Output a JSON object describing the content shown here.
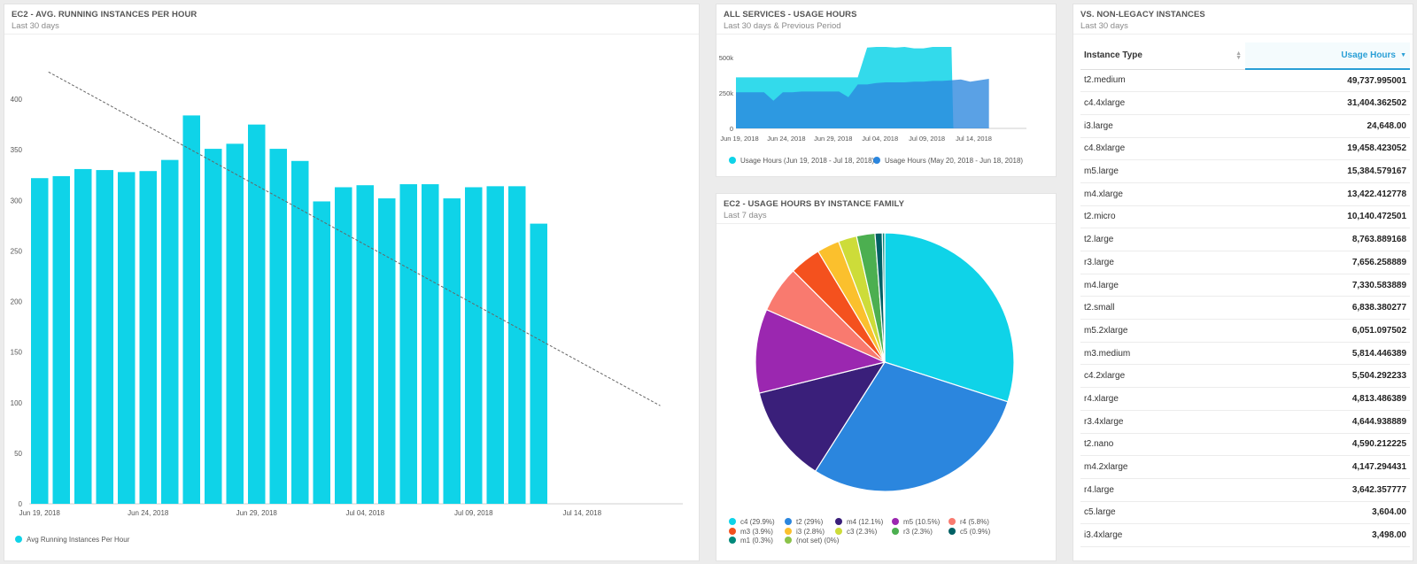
{
  "panels": {
    "ec2_avg": {
      "title": "EC2 - AVG. RUNNING INSTANCES PER HOUR",
      "subtitle": "Last 30 days"
    },
    "all_services": {
      "title": "ALL SERVICES - USAGE HOURS",
      "subtitle": "Last 30 days & Previous Period"
    },
    "family": {
      "title": "EC2 - USAGE HOURS BY INSTANCE FAMILY",
      "subtitle": "Last 7 days"
    },
    "nonlegacy": {
      "title": "VS. NON-LEGACY INSTANCES",
      "subtitle": "Last 30 days"
    }
  },
  "colors": {
    "accent": "#0fd3e8",
    "series2": "#2b86de",
    "trend": "#666666",
    "header_accent": "#2a9fd6"
  },
  "chart_data": [
    {
      "type": "bar",
      "x_ticks": [
        "Jun 19, 2018",
        "Jun 24, 2018",
        "Jun 29, 2018",
        "Jul 04, 2018",
        "Jul 09, 2018",
        "Jul 14, 2018"
      ],
      "categories": [
        "Jun 19",
        "Jun 20",
        "Jun 21",
        "Jun 22",
        "Jun 23",
        "Jun 24",
        "Jun 25",
        "Jun 26",
        "Jun 27",
        "Jun 28",
        "Jun 29",
        "Jun 30",
        "Jul 01",
        "Jul 02",
        "Jul 03",
        "Jul 04",
        "Jul 05",
        "Jul 06",
        "Jul 07",
        "Jul 08",
        "Jul 09",
        "Jul 10",
        "Jul 11",
        "Jul 12"
      ],
      "series": [
        {
          "name": "Avg Running Instances Per Hour",
          "values": [
            322,
            324,
            331,
            330,
            328,
            329,
            340,
            384,
            351,
            356,
            375,
            351,
            339,
            299,
            313,
            315,
            302,
            316,
            316,
            302,
            313,
            314,
            314,
            277
          ]
        }
      ],
      "trendline": {
        "start": [
          "Jun 19, 2018",
          427
        ],
        "end": [
          "Jul 17, 2018",
          97
        ]
      },
      "ylim": [
        0,
        450
      ],
      "y_ticks": [
        0,
        50,
        100,
        150,
        200,
        250,
        300,
        350,
        400
      ],
      "grid": false,
      "legend": "bottom-left"
    },
    {
      "type": "area",
      "x_ticks": [
        "Jun 19, 2018",
        "Jun 24, 2018",
        "Jun 29, 2018",
        "Jul 04, 2018",
        "Jul 09, 2018",
        "Jul 14, 2018"
      ],
      "y_ticks": [
        "0",
        "250k",
        "500k"
      ],
      "ylim": [
        0,
        600000
      ],
      "series": [
        {
          "name": "Usage Hours (Jun 19, 2018 - Jul 18, 2018)",
          "color": "#0fd3e8",
          "values": [
            360000,
            360000,
            360000,
            360000,
            360000,
            360000,
            360000,
            360000,
            360000,
            360000,
            360000,
            360000,
            360000,
            360000,
            570000,
            575000,
            575000,
            570000,
            575000,
            565000,
            565000,
            575000,
            575000,
            575000
          ]
        },
        {
          "name": "Usage Hours (May 20, 2018 - Jun 18, 2018)",
          "color": "#2b86de",
          "values": [
            255000,
            255000,
            255000,
            255000,
            195000,
            255000,
            255000,
            260000,
            260000,
            260000,
            260000,
            260000,
            220000,
            310000,
            310000,
            320000,
            325000,
            325000,
            325000,
            330000,
            330000,
            335000,
            335000,
            340000,
            345000,
            330000,
            340000,
            350000
          ]
        }
      ],
      "legend": "bottom"
    },
    {
      "type": "pie",
      "slices": [
        {
          "label": "c4 (29.9%)",
          "value": 29.9,
          "color": "#0fd3e8"
        },
        {
          "label": "t2 (29%)",
          "value": 29.0,
          "color": "#2b86de"
        },
        {
          "label": "m4 (12.1%)",
          "value": 12.1,
          "color": "#3a1f7a"
        },
        {
          "label": "m5 (10.5%)",
          "value": 10.5,
          "color": "#9b27b0"
        },
        {
          "label": "r4 (5.8%)",
          "value": 5.8,
          "color": "#f97a6f"
        },
        {
          "label": "m3 (3.9%)",
          "value": 3.9,
          "color": "#f4511e"
        },
        {
          "label": "i3 (2.8%)",
          "value": 2.8,
          "color": "#fbc02d"
        },
        {
          "label": "c3 (2.3%)",
          "value": 2.3,
          "color": "#cddc39"
        },
        {
          "label": "r3 (2.3%)",
          "value": 2.3,
          "color": "#4caf50"
        },
        {
          "label": "c5 (0.9%)",
          "value": 0.9,
          "color": "#006064"
        },
        {
          "label": "m1 (0.3%)",
          "value": 0.3,
          "color": "#00897b"
        },
        {
          "label": "(not set) (0%)",
          "value": 0.0,
          "color": "#8bc34a"
        }
      ],
      "legend": "bottom"
    },
    {
      "type": "table",
      "columns": [
        "Instance Type",
        "Usage Hours"
      ],
      "rows": [
        [
          "t2.medium",
          "49,737.995001"
        ],
        [
          "c4.4xlarge",
          "31,404.362502"
        ],
        [
          "i3.large",
          "24,648.00"
        ],
        [
          "c4.8xlarge",
          "19,458.423052"
        ],
        [
          "m5.large",
          "15,384.579167"
        ],
        [
          "m4.xlarge",
          "13,422.412778"
        ],
        [
          "t2.micro",
          "10,140.472501"
        ],
        [
          "t2.large",
          "8,763.889168"
        ],
        [
          "r3.large",
          "7,656.258889"
        ],
        [
          "m4.large",
          "7,330.583889"
        ],
        [
          "t2.small",
          "6,838.380277"
        ],
        [
          "m5.2xlarge",
          "6,051.097502"
        ],
        [
          "m3.medium",
          "5,814.446389"
        ],
        [
          "c4.2xlarge",
          "5,504.292233"
        ],
        [
          "r4.xlarge",
          "4,813.486389"
        ],
        [
          "r3.4xlarge",
          "4,644.938889"
        ],
        [
          "t2.nano",
          "4,590.212225"
        ],
        [
          "m4.2xlarge",
          "4,147.294431"
        ],
        [
          "r4.large",
          "3,642.357777"
        ],
        [
          "c5.large",
          "3,604.00"
        ],
        [
          "i3.4xlarge",
          "3,498.00"
        ]
      ]
    }
  ]
}
